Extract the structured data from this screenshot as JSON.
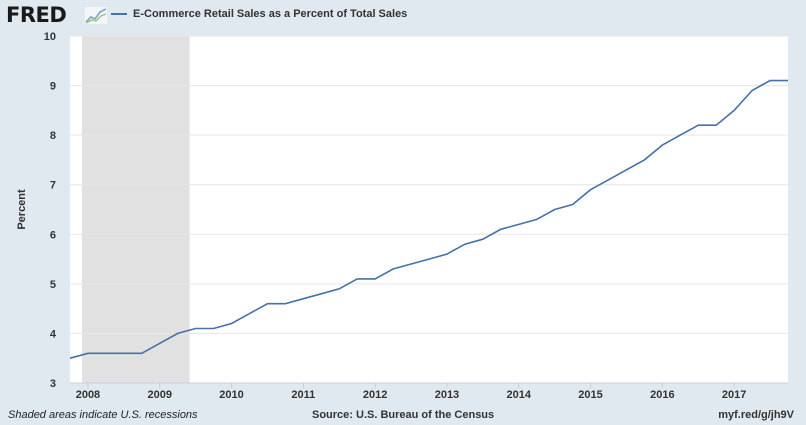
{
  "header": {
    "logo_text": "FRED",
    "logo_icon": "fred-graph-icon",
    "legend_label": "E-Commerce Retail Sales as a Percent of Total Sales"
  },
  "footer": {
    "note": "Shaded areas indicate U.S. recessions",
    "source": "Source: U.S. Bureau of the Census",
    "link": "myf.red/g/jh9V"
  },
  "colors": {
    "series": "#4572a7",
    "recession": "#e1e1e1",
    "background": "#e1e9f0",
    "plot": "#ffffff",
    "grid": "#e6e6e6"
  },
  "chart_data": {
    "type": "line",
    "ylabel": "Percent",
    "xlim": [
      2007.75,
      2017.75
    ],
    "ylim": [
      3,
      10
    ],
    "yticks": [
      3,
      4,
      5,
      6,
      7,
      8,
      9,
      10
    ],
    "xticks": [
      2008,
      2009,
      2010,
      2011,
      2012,
      2013,
      2014,
      2015,
      2016,
      2017
    ],
    "grid": true,
    "recessions": [
      [
        2007.9167,
        2009.4167
      ]
    ],
    "series": [
      {
        "name": "E-Commerce Retail Sales as a Percent of Total Sales",
        "x": [
          "2007 Q4",
          "2008 Q1",
          "2008 Q2",
          "2008 Q3",
          "2008 Q4",
          "2009 Q1",
          "2009 Q2",
          "2009 Q3",
          "2009 Q4",
          "2010 Q1",
          "2010 Q2",
          "2010 Q3",
          "2010 Q4",
          "2011 Q1",
          "2011 Q2",
          "2011 Q3",
          "2011 Q4",
          "2012 Q1",
          "2012 Q2",
          "2012 Q3",
          "2012 Q4",
          "2013 Q1",
          "2013 Q2",
          "2013 Q3",
          "2013 Q4",
          "2014 Q1",
          "2014 Q2",
          "2014 Q3",
          "2014 Q4",
          "2015 Q1",
          "2015 Q2",
          "2015 Q3",
          "2015 Q4",
          "2016 Q1",
          "2016 Q2",
          "2016 Q3",
          "2016 Q4",
          "2017 Q1",
          "2017 Q2",
          "2017 Q3",
          "2017 Q4"
        ],
        "values": [
          3.5,
          3.6,
          3.6,
          3.6,
          3.6,
          3.8,
          4.0,
          4.1,
          4.1,
          4.2,
          4.4,
          4.6,
          4.6,
          4.7,
          4.8,
          4.9,
          5.1,
          5.1,
          5.3,
          5.4,
          5.5,
          5.6,
          5.8,
          5.9,
          6.1,
          6.2,
          6.3,
          6.5,
          6.6,
          6.9,
          7.1,
          7.3,
          7.5,
          7.8,
          8.0,
          8.2,
          8.2,
          8.5,
          8.9,
          9.1,
          9.1
        ]
      }
    ]
  }
}
